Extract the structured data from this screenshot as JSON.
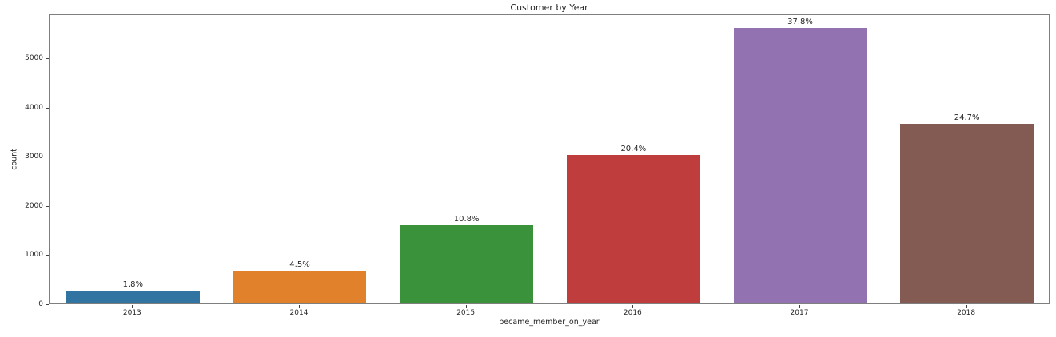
{
  "chart_data": {
    "type": "bar",
    "title": "Customer by Year",
    "xlabel": "became_member_on_year",
    "ylabel": "count",
    "categories": [
      "2013",
      "2014",
      "2015",
      "2016",
      "2017",
      "2018"
    ],
    "values": [
      267,
      667,
      1601,
      3024,
      5604,
      3662
    ],
    "bar_labels": [
      "1.8%",
      "4.5%",
      "10.8%",
      "20.4%",
      "37.8%",
      "24.7%"
    ],
    "bar_colors": [
      "#3274a1",
      "#e1812c",
      "#3a923a",
      "#c03d3e",
      "#9372b2",
      "#845b53"
    ],
    "ylim": [
      0,
      5900
    ],
    "yticks": [
      0,
      1000,
      2000,
      3000,
      4000,
      5000
    ],
    "bar_width_fraction": 0.8,
    "grid": false,
    "legend_position": "none"
  }
}
